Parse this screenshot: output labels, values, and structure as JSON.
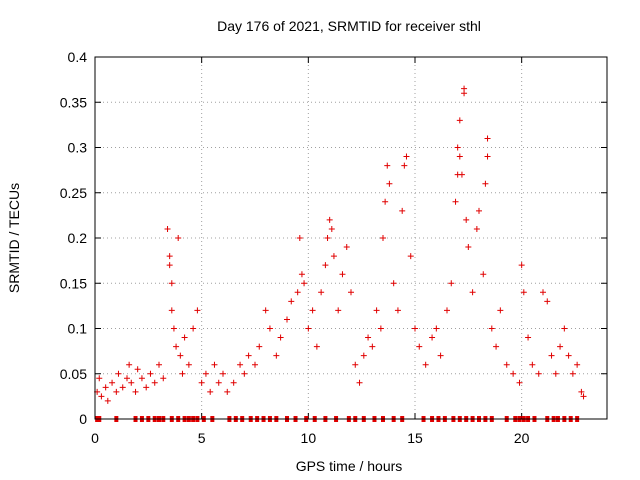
{
  "chart_data": {
    "type": "scatter",
    "title": "Day 176 of 2021, SRMTID for receiver sthl",
    "xlabel": "GPS time / hours",
    "ylabel": "SRMTID / TECUs",
    "xlim": [
      0,
      24
    ],
    "ylim": [
      0,
      0.4
    ],
    "xticks": [
      0,
      5,
      10,
      15,
      20
    ],
    "xtick_labels": [
      "0",
      "5",
      "10",
      "15",
      "20"
    ],
    "yticks": [
      0,
      0.05,
      0.1,
      0.15,
      0.2,
      0.25,
      0.3,
      0.35,
      0.4
    ],
    "ytick_labels": [
      "0",
      "0.05",
      "0.1",
      "0.15",
      "0.2",
      "0.25",
      "0.3",
      "0.35",
      "0.4"
    ],
    "grid": true,
    "marker": "plus",
    "color": "#e00000",
    "series": [
      {
        "name": "SRMTID",
        "points": [
          [
            0.1,
            0.03
          ],
          [
            0.2,
            0.045
          ],
          [
            0.3,
            0.025
          ],
          [
            0.5,
            0.035
          ],
          [
            0.6,
            0.02
          ],
          [
            0.8,
            0.04
          ],
          [
            1.0,
            0.03
          ],
          [
            1.1,
            0.05
          ],
          [
            1.3,
            0.035
          ],
          [
            1.5,
            0.045
          ],
          [
            1.6,
            0.06
          ],
          [
            1.7,
            0.04
          ],
          [
            1.9,
            0.03
          ],
          [
            2.0,
            0.055
          ],
          [
            2.2,
            0.045
          ],
          [
            2.4,
            0.035
          ],
          [
            2.6,
            0.05
          ],
          [
            2.8,
            0.04
          ],
          [
            3.0,
            0.06
          ],
          [
            3.2,
            0.045
          ],
          [
            3.4,
            0.21
          ],
          [
            3.5,
            0.18
          ],
          [
            3.5,
            0.17
          ],
          [
            3.6,
            0.15
          ],
          [
            3.6,
            0.12
          ],
          [
            3.7,
            0.1
          ],
          [
            3.8,
            0.08
          ],
          [
            3.9,
            0.2
          ],
          [
            4.0,
            0.07
          ],
          [
            4.1,
            0.05
          ],
          [
            4.2,
            0.09
          ],
          [
            4.4,
            0.06
          ],
          [
            4.6,
            0.1
          ],
          [
            4.8,
            0.12
          ],
          [
            5.0,
            0.04
          ],
          [
            5.2,
            0.05
          ],
          [
            5.4,
            0.03
          ],
          [
            5.6,
            0.06
          ],
          [
            5.8,
            0.04
          ],
          [
            6.0,
            0.05
          ],
          [
            6.2,
            0.03
          ],
          [
            6.5,
            0.04
          ],
          [
            6.8,
            0.06
          ],
          [
            7.0,
            0.05
          ],
          [
            7.2,
            0.07
          ],
          [
            7.5,
            0.06
          ],
          [
            7.7,
            0.08
          ],
          [
            8.0,
            0.12
          ],
          [
            8.2,
            0.1
          ],
          [
            8.5,
            0.07
          ],
          [
            8.7,
            0.09
          ],
          [
            9.0,
            0.11
          ],
          [
            9.2,
            0.13
          ],
          [
            9.5,
            0.14
          ],
          [
            9.6,
            0.2
          ],
          [
            9.7,
            0.16
          ],
          [
            9.8,
            0.15
          ],
          [
            10.0,
            0.1
          ],
          [
            10.2,
            0.12
          ],
          [
            10.4,
            0.08
          ],
          [
            10.6,
            0.14
          ],
          [
            10.8,
            0.17
          ],
          [
            10.9,
            0.2
          ],
          [
            11.0,
            0.22
          ],
          [
            11.1,
            0.21
          ],
          [
            11.2,
            0.18
          ],
          [
            11.4,
            0.12
          ],
          [
            11.6,
            0.16
          ],
          [
            11.8,
            0.19
          ],
          [
            12.0,
            0.14
          ],
          [
            12.2,
            0.06
          ],
          [
            12.4,
            0.04
          ],
          [
            12.6,
            0.07
          ],
          [
            12.8,
            0.09
          ],
          [
            13.0,
            0.08
          ],
          [
            13.2,
            0.12
          ],
          [
            13.4,
            0.1
          ],
          [
            13.5,
            0.2
          ],
          [
            13.6,
            0.24
          ],
          [
            13.7,
            0.28
          ],
          [
            13.8,
            0.26
          ],
          [
            14.0,
            0.15
          ],
          [
            14.2,
            0.12
          ],
          [
            14.4,
            0.23
          ],
          [
            14.5,
            0.28
          ],
          [
            14.6,
            0.29
          ],
          [
            14.8,
            0.18
          ],
          [
            15.0,
            0.1
          ],
          [
            15.2,
            0.08
          ],
          [
            15.5,
            0.06
          ],
          [
            15.8,
            0.09
          ],
          [
            16.0,
            0.1
          ],
          [
            16.2,
            0.07
          ],
          [
            16.5,
            0.12
          ],
          [
            16.7,
            0.15
          ],
          [
            16.9,
            0.24
          ],
          [
            17.0,
            0.27
          ],
          [
            17.0,
            0.3
          ],
          [
            17.1,
            0.29
          ],
          [
            17.1,
            0.33
          ],
          [
            17.2,
            0.27
          ],
          [
            17.3,
            0.36
          ],
          [
            17.3,
            0.365
          ],
          [
            17.4,
            0.22
          ],
          [
            17.5,
            0.19
          ],
          [
            17.7,
            0.14
          ],
          [
            17.9,
            0.21
          ],
          [
            18.0,
            0.23
          ],
          [
            18.2,
            0.16
          ],
          [
            18.3,
            0.26
          ],
          [
            18.4,
            0.29
          ],
          [
            18.4,
            0.31
          ],
          [
            18.6,
            0.1
          ],
          [
            18.8,
            0.08
          ],
          [
            19.0,
            0.12
          ],
          [
            19.3,
            0.06
          ],
          [
            19.6,
            0.05
          ],
          [
            19.9,
            0.04
          ],
          [
            20.0,
            0.17
          ],
          [
            20.1,
            0.14
          ],
          [
            20.3,
            0.09
          ],
          [
            20.5,
            0.06
          ],
          [
            20.8,
            0.05
          ],
          [
            21.0,
            0.14
          ],
          [
            21.2,
            0.13
          ],
          [
            21.4,
            0.07
          ],
          [
            21.6,
            0.05
          ],
          [
            21.8,
            0.08
          ],
          [
            22.0,
            0.1
          ],
          [
            22.2,
            0.07
          ],
          [
            22.4,
            0.05
          ],
          [
            22.6,
            0.06
          ],
          [
            22.8,
            0.03
          ],
          [
            22.9,
            0.025
          ]
        ]
      }
    ],
    "baseline_hours": [
      0.1,
      0.2,
      1.0,
      1.9,
      2.2,
      2.5,
      2.8,
      3.0,
      3.2,
      3.6,
      3.9,
      4.2,
      4.4,
      4.6,
      4.8,
      5.1,
      5.5,
      6.3,
      6.6,
      6.9,
      7.3,
      7.6,
      7.9,
      8.2,
      8.5,
      9.0,
      9.4,
      9.9,
      10.3,
      10.8,
      11.3,
      11.9,
      12.2,
      12.6,
      13.1,
      13.5,
      14.0,
      14.4,
      15.4,
      15.8,
      16.1,
      16.4,
      16.8,
      17.1,
      17.4,
      17.7,
      18.0,
      18.3,
      18.6,
      19.3,
      19.7,
      19.9,
      20.1,
      20.3,
      20.6,
      21.2,
      21.5,
      21.7,
      22.0,
      22.3,
      22.6
    ]
  }
}
